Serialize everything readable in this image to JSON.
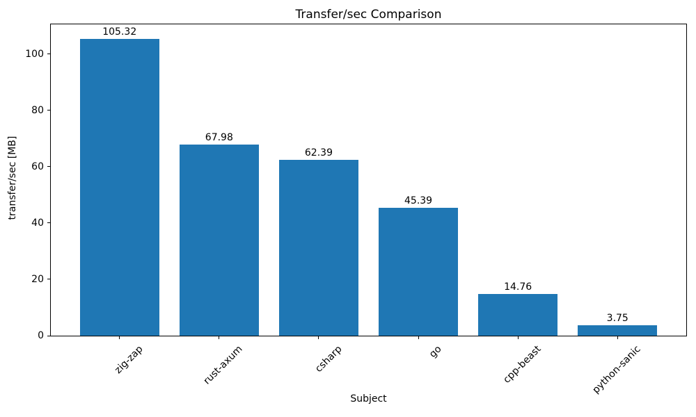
{
  "chart_data": {
    "type": "bar",
    "title": "Transfer/sec Comparison",
    "xlabel": "Subject",
    "ylabel": "transfer/sec [MB]",
    "categories": [
      "zig-zap",
      "rust-axum",
      "csharp",
      "go",
      "cpp-beast",
      "python-sanic"
    ],
    "values": [
      105.32,
      67.98,
      62.39,
      45.39,
      14.76,
      3.75
    ],
    "bar_labels": [
      "105.32",
      "67.98",
      "62.39",
      "45.39",
      "14.76",
      "3.75"
    ],
    "bar_color": "#1f77b4",
    "yticks": [
      0,
      20,
      40,
      60,
      80,
      100
    ],
    "ylim": [
      0,
      110.6
    ],
    "bar_width_fraction": 0.8,
    "xtick_rotation_deg": 45,
    "grid": false,
    "legend": "none",
    "background_color": "#ffffff"
  }
}
